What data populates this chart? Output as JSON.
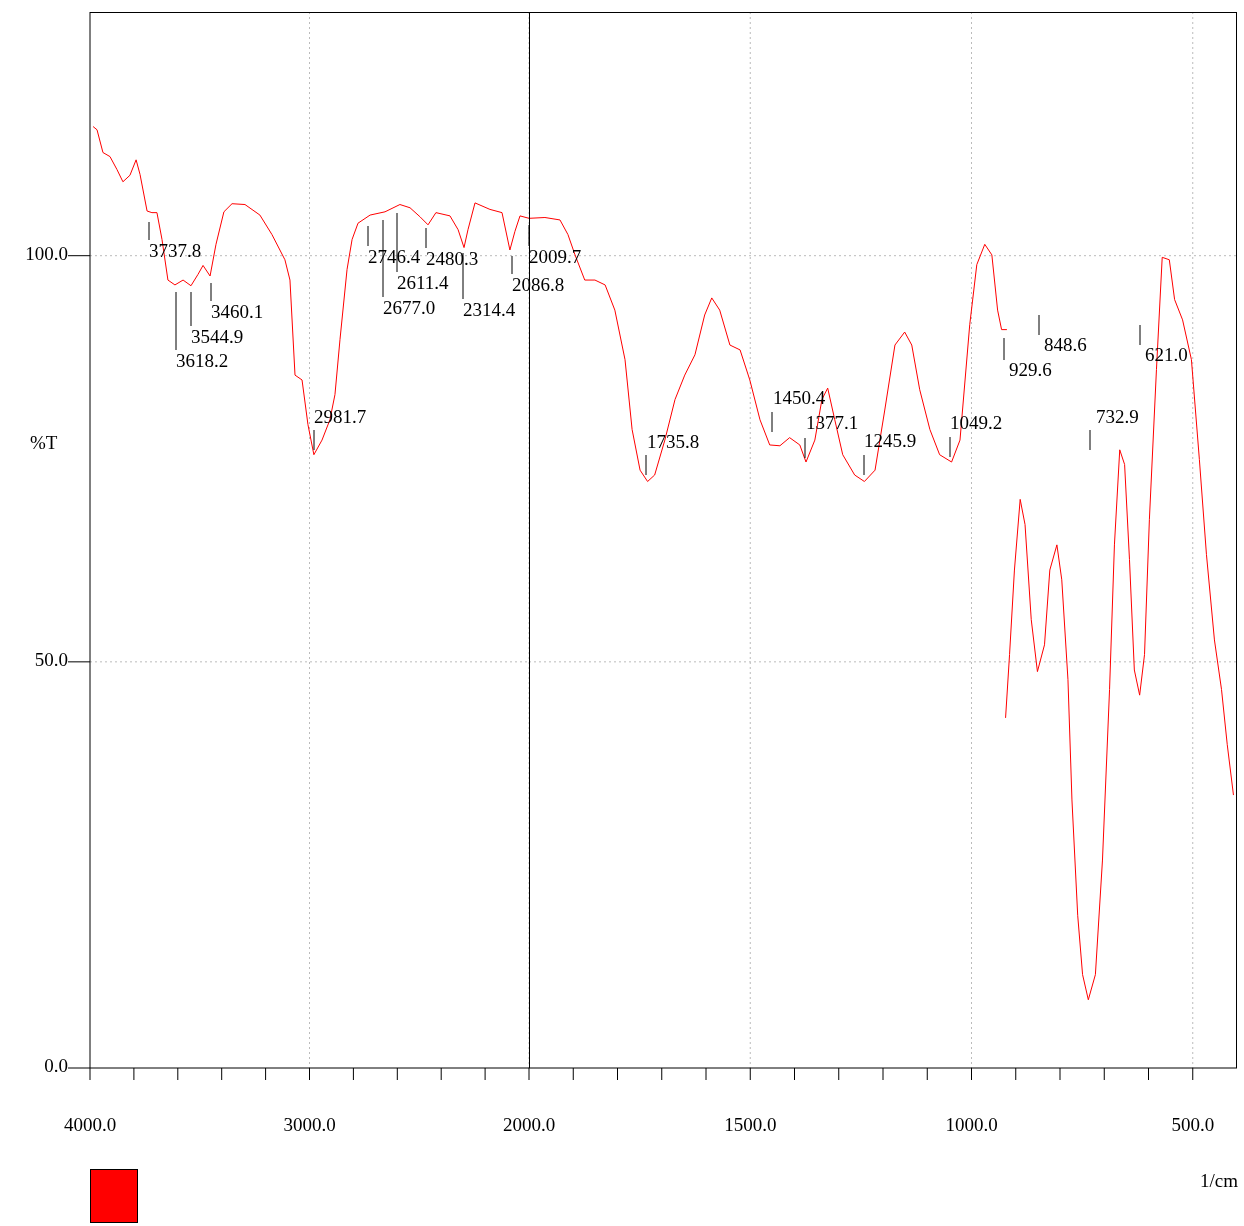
{
  "chart_data": [
    {
      "type": "line",
      "ylabel": "%T",
      "xlim": [
        4000,
        2000
      ],
      "xticks": [
        {
          "value": 4000,
          "label": "4000.0"
        },
        {
          "value": 3800,
          "label": null
        },
        {
          "value": 3600,
          "label": null
        },
        {
          "value": 3400,
          "label": null
        },
        {
          "value": 3200,
          "label": null
        },
        {
          "value": 3000,
          "label": "3000.0"
        },
        {
          "value": 2800,
          "label": null
        },
        {
          "value": 2600,
          "label": null
        },
        {
          "value": 2400,
          "label": null
        },
        {
          "value": 2200,
          "label": null
        },
        {
          "value": 2000,
          "label": "2000.0"
        }
      ],
      "ylim": [
        0,
        130
      ],
      "yticks": [
        {
          "value": 0,
          "label": "0.0"
        },
        {
          "value": 50,
          "label": "50.0"
        },
        {
          "value": 100,
          "label": "100.0"
        }
      ],
      "grid": true,
      "color": "#ff0000",
      "x": [
        3986,
        3968,
        3941,
        3909,
        3877,
        3850,
        3818,
        3790,
        3772,
        3740,
        3718,
        3695,
        3672,
        3645,
        3613,
        3576,
        3540,
        3508,
        3485,
        3453,
        3426,
        3390,
        3353,
        3294,
        3226,
        3171,
        3112,
        3089,
        3066,
        3034,
        3007,
        2980,
        2943,
        2907,
        2884,
        2861,
        2829,
        2806,
        2779,
        2724,
        2656,
        2588,
        2542,
        2497,
        2460,
        2424,
        2360,
        2323,
        2296,
        2278,
        2246,
        2178,
        2123,
        2087,
        2064,
        2041,
        2000
      ],
      "values": [
        115.9,
        115.5,
        112.7,
        112.2,
        110.6,
        109.1,
        109.9,
        111.8,
        110,
        105.5,
        105.3,
        105.3,
        102,
        97,
        96.4,
        97,
        96.3,
        97.7,
        98.8,
        97.5,
        101.4,
        105.4,
        106.4,
        106.3,
        105,
        102.6,
        99.5,
        97,
        85.3,
        84.7,
        79.2,
        75.5,
        77.3,
        79.8,
        82.9,
        89.7,
        98.3,
        102,
        104,
        105,
        105.4,
        106.3,
        105.9,
        104.8,
        103.8,
        105.3,
        104.9,
        103.2,
        101,
        103.2,
        106.5,
        105.7,
        105.3,
        100.7,
        103,
        104.9,
        104.6
      ],
      "annotations": [
        "3737.8",
        "3618.2",
        "3544.9",
        "3460.1",
        "2981.7",
        "2746.4",
        "2677.0",
        "2611.4",
        "2480.3",
        "2314.4",
        "2086.8",
        "2009.7"
      ]
    },
    {
      "type": "line",
      "xlabel": "1/cm",
      "tick_labels": "x",
      "xlim": [
        2000,
        400
      ],
      "xticks": [
        {
          "value": 1900,
          "label": null
        },
        {
          "value": 1800,
          "label": null
        },
        {
          "value": 1700,
          "label": null
        },
        {
          "value": 1600,
          "label": null
        },
        {
          "value": 1500,
          "label": "1500.0"
        },
        {
          "value": 1400,
          "label": null
        },
        {
          "value": 1300,
          "label": null
        },
        {
          "value": 1200,
          "label": null
        },
        {
          "value": 1100,
          "label": null
        },
        {
          "value": 1000,
          "label": "1000.0"
        },
        {
          "value": 900,
          "label": null
        },
        {
          "value": 800,
          "label": null
        },
        {
          "value": 700,
          "label": null
        },
        {
          "value": 600,
          "label": null
        },
        {
          "value": 500,
          "label": "500.0"
        }
      ],
      "ylim": [
        0,
        130
      ],
      "yticks": [
        0,
        50,
        100
      ],
      "grid": true,
      "color": "#ff0000",
      "x": [
        2000,
        1964,
        1930,
        1912,
        1896,
        1874,
        1851,
        1828,
        1806,
        1783,
        1767,
        1749,
        1732,
        1716,
        1693,
        1670,
        1648,
        1625,
        1603,
        1587,
        1569,
        1546,
        1523,
        1501,
        1478,
        1456,
        1433,
        1411,
        1388,
        1374,
        1354,
        1338,
        1325,
        1309,
        1291,
        1264,
        1242,
        1218,
        1196,
        1173,
        1151,
        1135,
        1117,
        1094,
        1072,
        1045,
        1026,
        1004,
        988,
        970,
        954,
        941,
        932,
        920,
        921.5,
        923,
        914,
        903,
        890,
        879,
        865,
        851,
        835,
        823,
        807,
        796,
        782,
        773,
        760,
        749,
        736,
        720,
        704,
        688,
        677,
        665,
        654,
        643,
        632,
        620,
        609,
        598,
        582,
        569,
        553,
        541,
        523,
        503,
        485,
        469,
        451,
        435,
        422,
        408
      ],
      "values": [
        104.6,
        104.7,
        104.4,
        102.6,
        100.1,
        97,
        97,
        96.4,
        93.3,
        87.2,
        78.6,
        73.6,
        72.2,
        73,
        77.3,
        82.3,
        85.3,
        87.8,
        92.7,
        94.8,
        93.3,
        89,
        88.4,
        84.7,
        79.8,
        76.7,
        76.6,
        77.6,
        76.7,
        74.6,
        77.3,
        82.3,
        83.7,
        79.8,
        75.5,
        73,
        72.2,
        73.6,
        81,
        89,
        90.6,
        89,
        83.5,
        78.6,
        75.5,
        74.6,
        77.3,
        91.5,
        98.9,
        101.4,
        100.1,
        93.3,
        90.9,
        90.9,
        null,
        43.1,
        50.9,
        61.3,
        70,
        66.9,
        55.2,
        48.8,
        52.1,
        61.3,
        64.4,
        60.1,
        47.8,
        33,
        18.8,
        11.5,
        8.4,
        11.5,
        25.6,
        46.6,
        64.4,
        76.1,
        74.3,
        62.6,
        49,
        45.9,
        50.9,
        67.5,
        86,
        99.8,
        99.5,
        94.6,
        92.1,
        87.2,
        74.9,
        63.2,
        52.7,
        46.6,
        39.8,
        33.6
      ],
      "annotations": [
        "1735.8",
        "1450.4",
        "1377.1",
        "1245.9",
        "1049.2",
        "929.6",
        "848.6",
        "732.9",
        "621.0"
      ]
    }
  ]
}
